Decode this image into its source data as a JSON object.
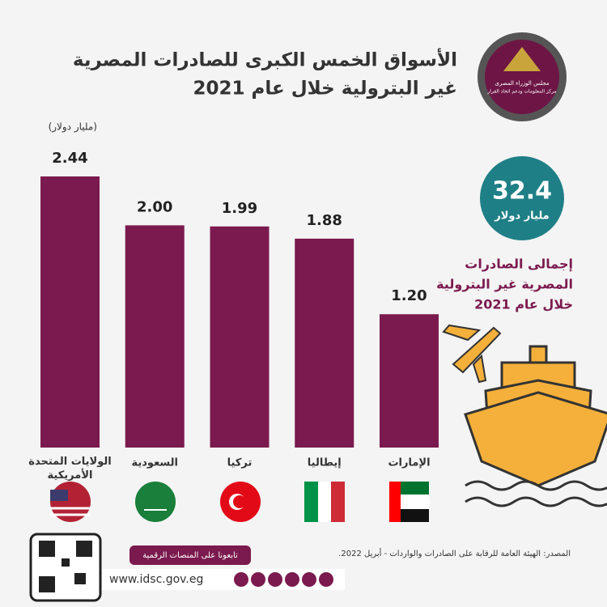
{
  "header": {
    "title_lines": [
      "الأسواق الخمس الكبرى للصادرات المصرية",
      "غير البترولية خلال عام 2021"
    ],
    "logo_lines": [
      "مجلس الوزراء المصرى",
      "مركز المعلومات ودعم اتخاذ القرار"
    ]
  },
  "chart_data": {
    "type": "bar",
    "unit": "(مليار دولار)",
    "categories": [
      "الولايات المتحدة الأمريكية",
      "السعودية",
      "تركيا",
      "إيطاليا",
      "الإمارات"
    ],
    "values": [
      2.44,
      2.0,
      1.99,
      1.88,
      1.2
    ],
    "value_labels": [
      "2.44",
      "2.00",
      "1.99",
      "1.88",
      "1.20"
    ],
    "color": "#7b1a4e"
  },
  "total": {
    "value": 32.4,
    "unit": "مليار دولار",
    "description_lines": [
      "إجمالى الصادرات",
      "المصرية غير البترولية",
      "خلال عام 2021"
    ]
  },
  "footer": {
    "source": "المصدر: الهيئة العامة للرقابة على الصادرات والواردات - أبريل 2022.",
    "follow": "تابعونا على المنصات الرقمية",
    "website": "www.idsc.gov.eg"
  }
}
